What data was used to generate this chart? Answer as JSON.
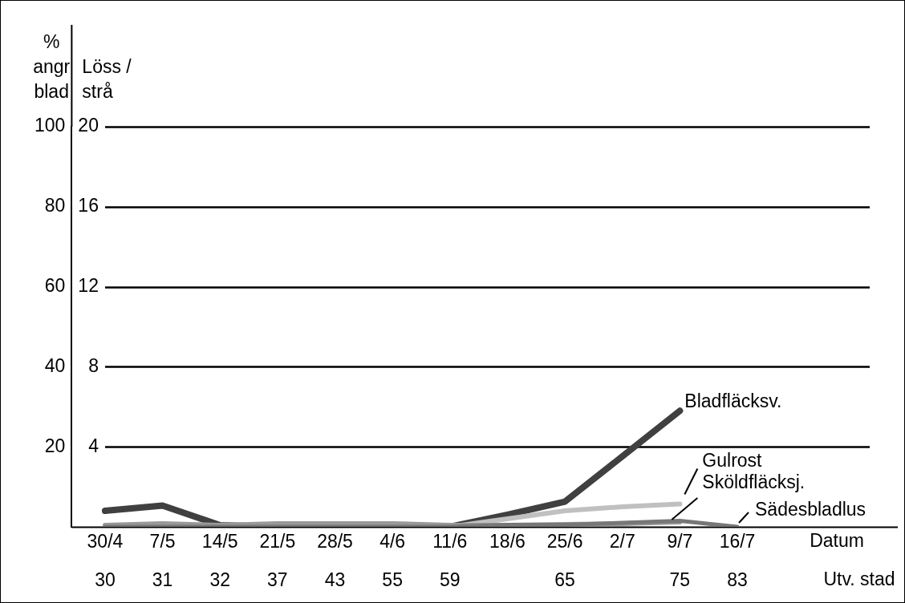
{
  "chart_data": {
    "type": "line",
    "categories": [
      "30/4\n30",
      "7/5\n31",
      "14/5\n32",
      "21/5\n37",
      "28/5\n43",
      "4/6\n55",
      "11/6\n59",
      "18/6",
      "25/6\n65",
      "2/7",
      "9/7\n75",
      "16/7\n83"
    ],
    "xlabel": "Datum\nUtv. stad",
    "ylabel": "%\nangr\nblad",
    "y2label": "Löss /\nstrå",
    "series": [
      {
        "name": "Bladfläcksv.",
        "color": "#404040",
        "values": [
          4,
          5.3,
          0.4,
          0,
          0,
          0,
          0,
          3,
          6.3,
          17.6,
          29,
          null
        ]
      },
      {
        "name": "Gulrost",
        "color": "#c0c0c0",
        "values": [
          null,
          null,
          null,
          null,
          null,
          null,
          0,
          2,
          4,
          5,
          5.7,
          null
        ]
      },
      {
        "name": "Sköldfläcksj.",
        "color": "#999999",
        "values": [
          0.4,
          0.8,
          0.4,
          0.8,
          0.8,
          0.8,
          0.4,
          0.4,
          0.6,
          0.8,
          1.2,
          null
        ]
      },
      {
        "name": "Sädesbladlus",
        "color": "#777777",
        "axis": "y2",
        "values": [
          0,
          0,
          0,
          0,
          0,
          0,
          0,
          0.1,
          0.1,
          0.2,
          0.3,
          0
        ]
      }
    ],
    "ylim": [
      0,
      100
    ],
    "yticks": [
      {
        "value": 0,
        "label": null
      },
      20,
      40,
      60,
      80,
      100
    ],
    "y2lim": [
      0,
      20
    ],
    "y2ticks": [
      {
        "value": 0,
        "label": null
      },
      4,
      8,
      12,
      16,
      20
    ],
    "grid": "y",
    "legend": false,
    "marker": "none",
    "line_style": "solid"
  }
}
